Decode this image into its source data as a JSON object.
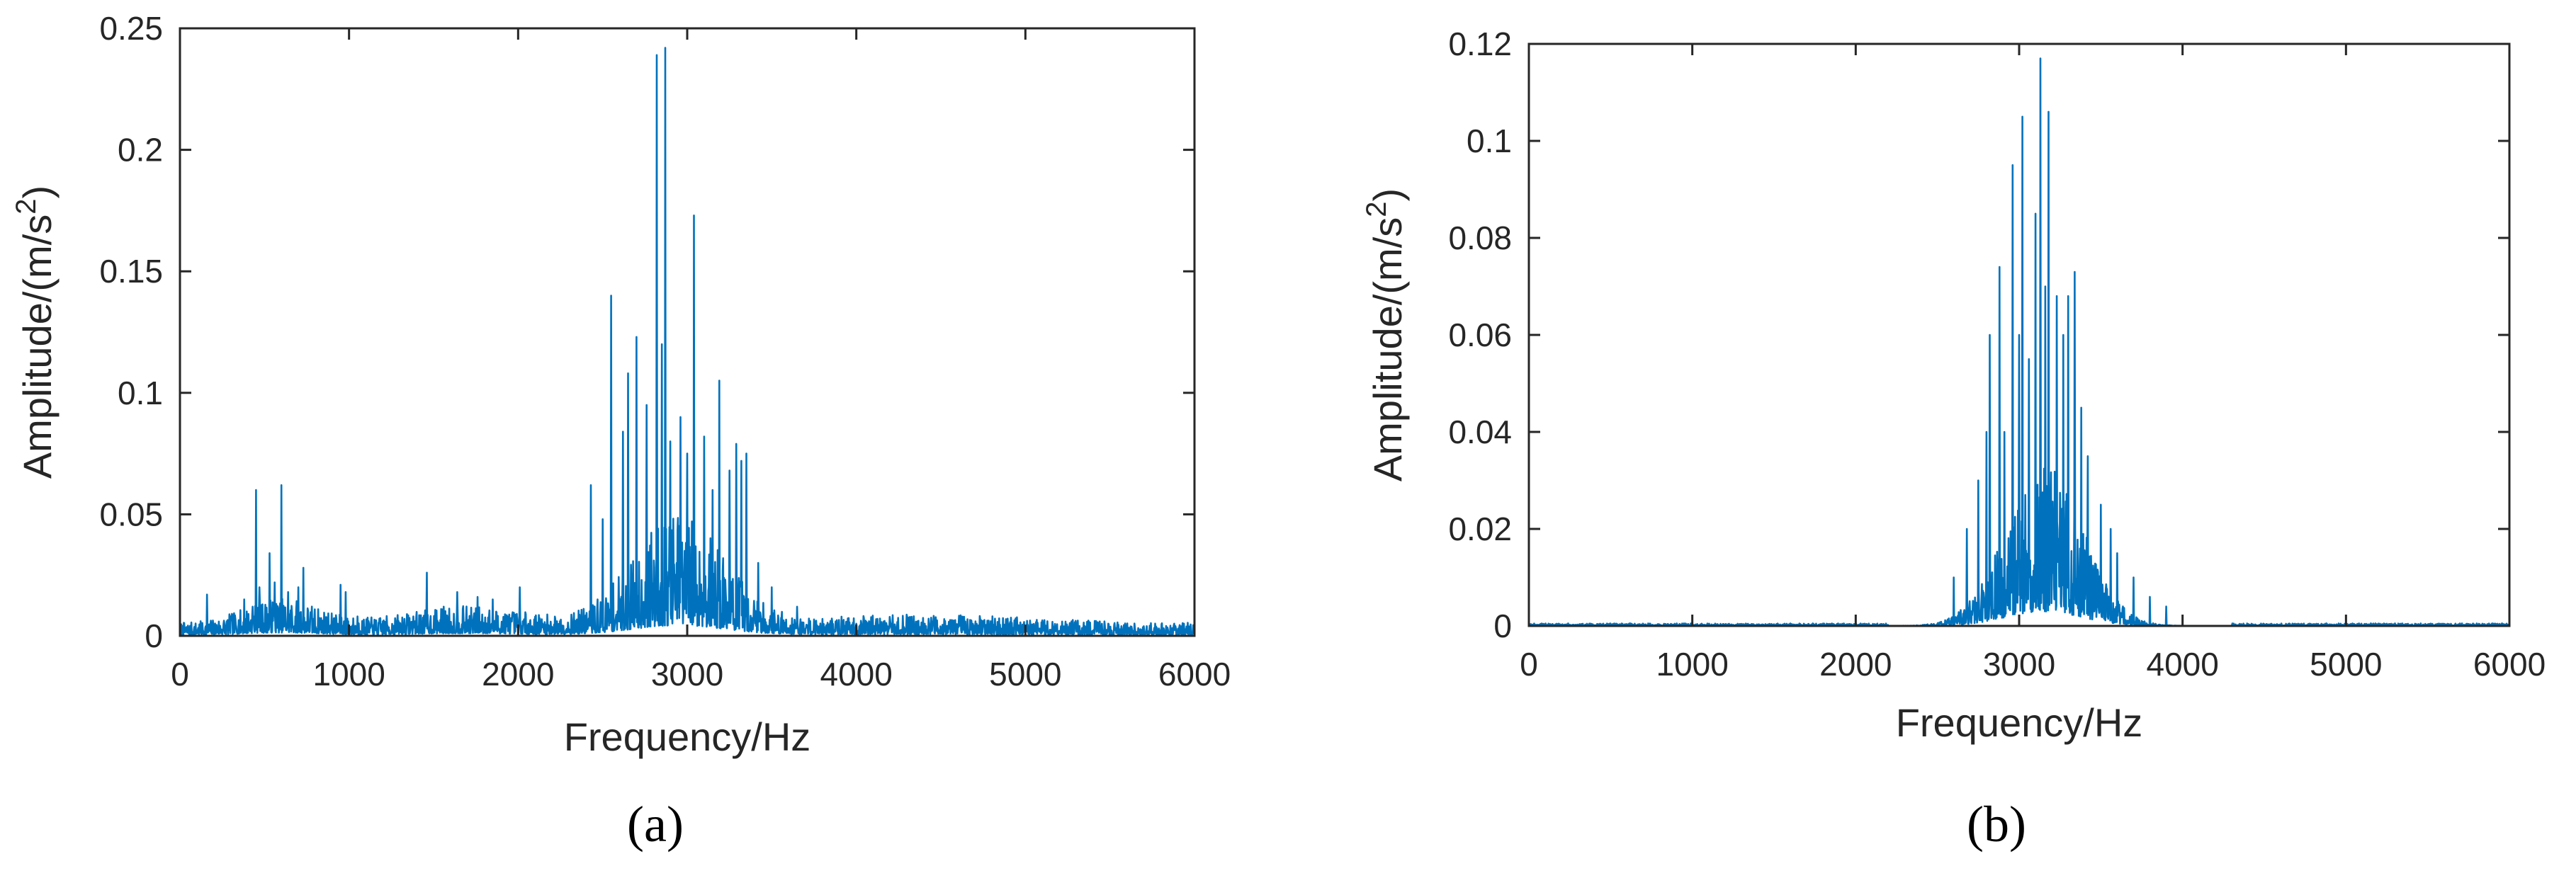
{
  "colors": {
    "series": "#0072BD",
    "axis": "#262626"
  },
  "chart_data": [
    {
      "type": "line",
      "caption": "(a)",
      "xlabel": "Frequency/Hz",
      "ylabel_main": "Amplitude/(m/s",
      "ylabel_sup": "2",
      "ylabel_close": ")",
      "xlim": [
        0,
        6000
      ],
      "ylim": [
        0,
        0.25
      ],
      "xticks": [
        0,
        1000,
        2000,
        3000,
        4000,
        5000,
        6000
      ],
      "xtick_labels": [
        "0",
        "1000",
        "2000",
        "3000",
        "4000",
        "5000",
        "6000"
      ],
      "yticks": [
        0,
        0.05,
        0.1,
        0.15,
        0.2,
        0.25
      ],
      "ytick_labels": [
        "0",
        "0.05",
        "0.1",
        "0.15",
        "0.2",
        "0.25"
      ],
      "grid": false,
      "peaks": [
        [
          160,
          0.017
        ],
        [
          300,
          0.008
        ],
        [
          380,
          0.015
        ],
        [
          430,
          0.012
        ],
        [
          450,
          0.06
        ],
        [
          470,
          0.02
        ],
        [
          530,
          0.034
        ],
        [
          560,
          0.022
        ],
        [
          600,
          0.062
        ],
        [
          640,
          0.018
        ],
        [
          700,
          0.02
        ],
        [
          730,
          0.028
        ],
        [
          780,
          0.012
        ],
        [
          950,
          0.021
        ],
        [
          980,
          0.018
        ],
        [
          1050,
          0.008
        ],
        [
          1200,
          0.006
        ],
        [
          1380,
          0.008
        ],
        [
          1460,
          0.026
        ],
        [
          1560,
          0.012
        ],
        [
          1640,
          0.018
        ],
        [
          1760,
          0.016
        ],
        [
          1850,
          0.015
        ],
        [
          2010,
          0.02
        ],
        [
          2230,
          0.006
        ],
        [
          2430,
          0.062
        ],
        [
          2500,
          0.048
        ],
        [
          2550,
          0.14
        ],
        [
          2620,
          0.084
        ],
        [
          2650,
          0.108
        ],
        [
          2700,
          0.123
        ],
        [
          2760,
          0.095
        ],
        [
          2820,
          0.239
        ],
        [
          2850,
          0.12
        ],
        [
          2870,
          0.242
        ],
        [
          2900,
          0.08
        ],
        [
          2960,
          0.09
        ],
        [
          3000,
          0.075
        ],
        [
          3040,
          0.173
        ],
        [
          3100,
          0.082
        ],
        [
          3150,
          0.06
        ],
        [
          3190,
          0.105
        ],
        [
          3250,
          0.068
        ],
        [
          3290,
          0.079
        ],
        [
          3320,
          0.072
        ],
        [
          3350,
          0.075
        ],
        [
          3420,
          0.03
        ],
        [
          3500,
          0.02
        ],
        [
          3650,
          0.012
        ],
        [
          3800,
          0.007
        ],
        [
          4000,
          0.005
        ],
        [
          4500,
          0.003
        ],
        [
          5000,
          0.003
        ],
        [
          5200,
          0.002
        ]
      ]
    },
    {
      "type": "line",
      "caption": "(b)",
      "xlabel": "Frequency/Hz",
      "ylabel_main": "Amplitude/(m/s",
      "ylabel_sup": "2",
      "ylabel_close": ")",
      "xlim": [
        0,
        6000
      ],
      "ylim": [
        0,
        0.12
      ],
      "xticks": [
        0,
        1000,
        2000,
        3000,
        4000,
        5000,
        6000
      ],
      "xtick_labels": [
        "0",
        "1000",
        "2000",
        "3000",
        "4000",
        "5000",
        "6000"
      ],
      "yticks": [
        0,
        0.02,
        0.04,
        0.06,
        0.08,
        0.1,
        0.12
      ],
      "ytick_labels": [
        "0",
        "0.02",
        "0.04",
        "0.06",
        "0.08",
        "0.1",
        "0.12"
      ],
      "grid": false,
      "peaks": [
        [
          2600,
          0.01
        ],
        [
          2680,
          0.02
        ],
        [
          2750,
          0.03
        ],
        [
          2800,
          0.04
        ],
        [
          2820,
          0.06
        ],
        [
          2880,
          0.074
        ],
        [
          2910,
          0.04
        ],
        [
          2960,
          0.095
        ],
        [
          3000,
          0.06
        ],
        [
          3020,
          0.105
        ],
        [
          3060,
          0.055
        ],
        [
          3100,
          0.085
        ],
        [
          3130,
          0.117
        ],
        [
          3160,
          0.07
        ],
        [
          3180,
          0.106
        ],
        [
          3230,
          0.068
        ],
        [
          3270,
          0.06
        ],
        [
          3300,
          0.068
        ],
        [
          3340,
          0.073
        ],
        [
          3380,
          0.045
        ],
        [
          3420,
          0.035
        ],
        [
          3500,
          0.025
        ],
        [
          3560,
          0.02
        ],
        [
          3600,
          0.015
        ],
        [
          3700,
          0.01
        ],
        [
          3800,
          0.006
        ],
        [
          3900,
          0.004
        ]
      ]
    }
  ]
}
